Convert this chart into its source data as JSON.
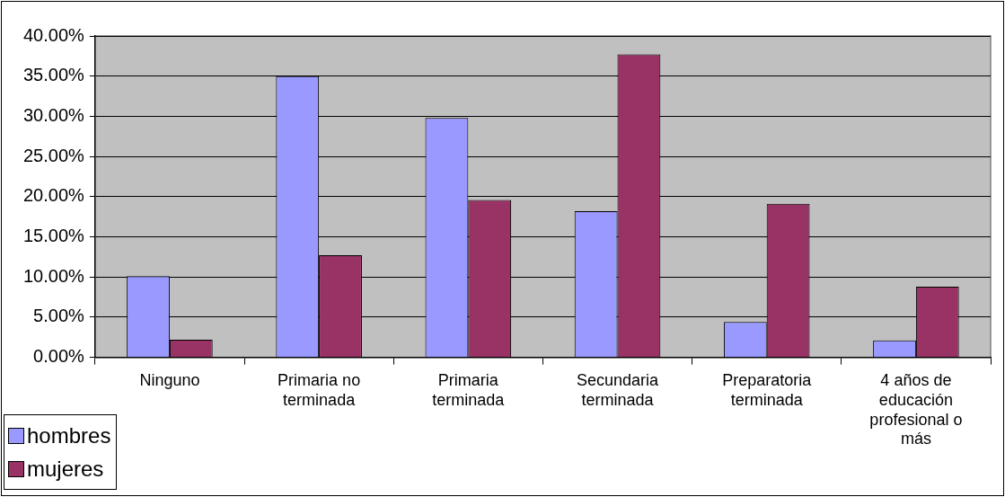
{
  "chart_data": {
    "type": "bar",
    "categories": [
      "Ninguno",
      "Primaria no terminada",
      "Primaria terminada",
      "Secundaria terminada",
      "Preparatoria terminada",
      "4 años de educación profesional o más"
    ],
    "series": [
      {
        "name": "hombres",
        "color": "#9999ff",
        "values": [
          10.1,
          35.0,
          29.8,
          18.2,
          4.4,
          2.1
        ]
      },
      {
        "name": "mujeres",
        "color": "#993366",
        "values": [
          2.2,
          12.7,
          19.6,
          37.7,
          19.1,
          8.8
        ]
      }
    ],
    "ylim": [
      0,
      40
    ],
    "yticks": [
      {
        "value": 0,
        "label": "0.00%"
      },
      {
        "value": 5,
        "label": "5.00%"
      },
      {
        "value": 10,
        "label": "10.00%"
      },
      {
        "value": 15,
        "label": "15.00%"
      },
      {
        "value": 20,
        "label": "20.00%"
      },
      {
        "value": 25,
        "label": "25.00%"
      },
      {
        "value": 30,
        "label": "30.00%"
      },
      {
        "value": 35,
        "label": "35.00%"
      },
      {
        "value": 40,
        "label": "40.00%"
      }
    ],
    "grid": "y",
    "legend": "bottom left"
  }
}
